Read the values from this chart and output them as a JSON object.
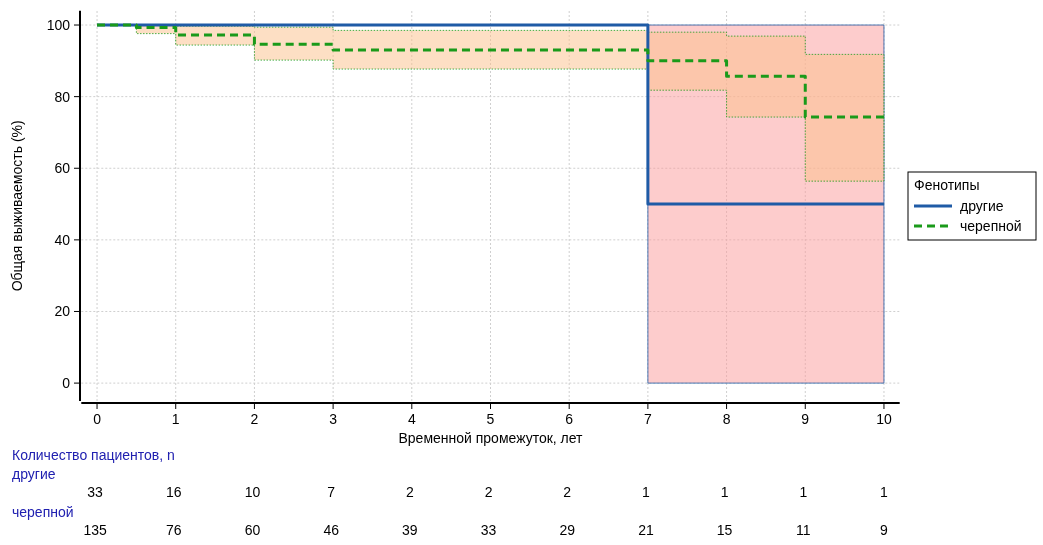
{
  "chart_data": {
    "type": "step",
    "xlabel": "Временной промежуток, лет",
    "ylabel": "Общая выживаемость (%)",
    "legend_title": "Фенотипы",
    "legend": "right",
    "xlim": [
      -0.2,
      10.2
    ],
    "xticks": [
      0,
      1,
      2,
      3,
      4,
      5,
      6,
      7,
      8,
      9,
      10
    ],
    "ylim": [
      -5,
      104
    ],
    "yticks": [
      0,
      20,
      40,
      60,
      80,
      100
    ],
    "grid": true,
    "series": [
      {
        "name": "другие",
        "color": "#1f5ba6",
        "line_style": "solid",
        "x": [
          0,
          7,
          10
        ],
        "values": [
          100,
          50,
          50
        ],
        "lower": [
          100,
          0,
          0
        ],
        "upper": [
          100,
          100,
          100
        ]
      },
      {
        "name": "черепной",
        "color": "#1a9a1a",
        "line_style": "dashed",
        "x": [
          0,
          0.5,
          1,
          2,
          3,
          7,
          8,
          9,
          10
        ],
        "values": [
          100,
          99.3,
          97.2,
          94.6,
          93,
          90,
          85.7,
          74.3,
          74.3
        ],
        "lower": [
          100,
          97.6,
          94.4,
          90.2,
          87.7,
          81.8,
          74.3,
          56.4,
          56.4
        ],
        "upper": [
          100,
          100,
          99.7,
          99.4,
          98.5,
          98,
          96.9,
          91.8,
          91.8
        ]
      }
    ],
    "annotations": [
      "Количество пациентов, n",
      "другие",
      "33 16 10 7 2 2 2 1 1 1 1",
      "черепной",
      "135 76 60 46 39 33 29 21 15 11 9"
    ]
  }
}
